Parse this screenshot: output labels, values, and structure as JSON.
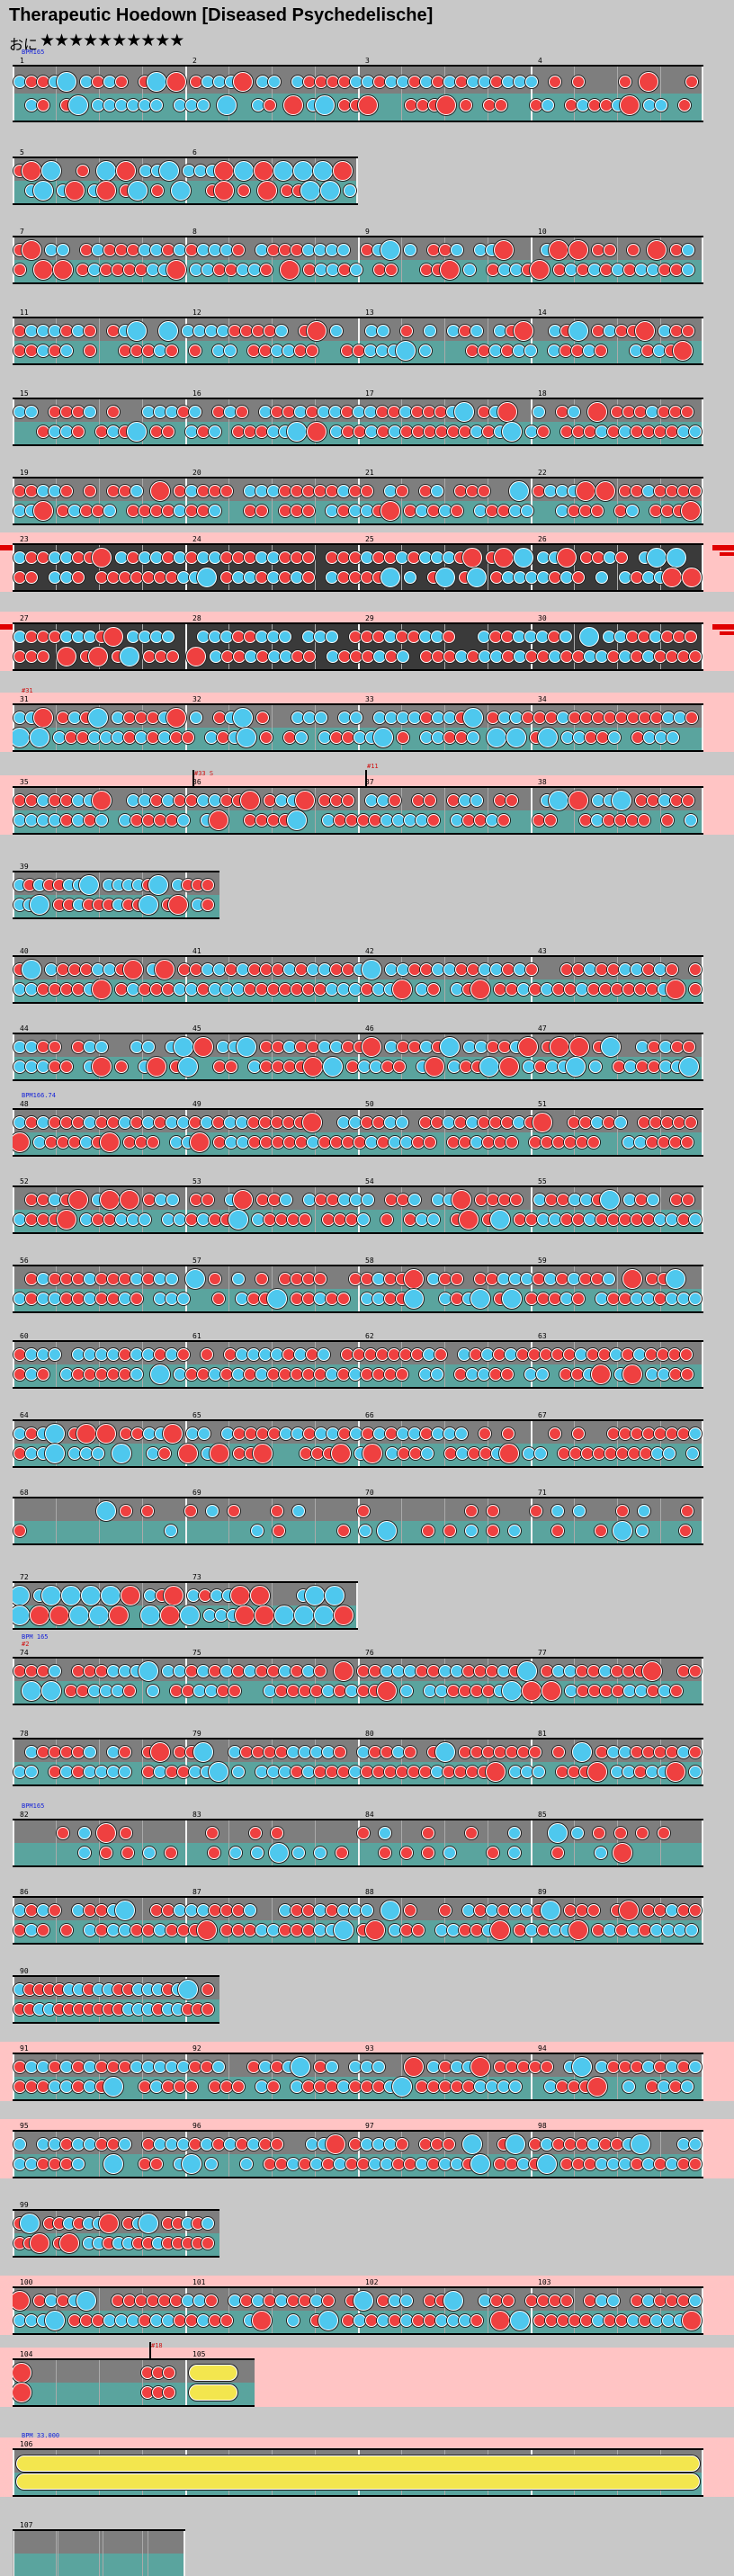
{
  "song": {
    "title": "Therapeutic Hoedown [Diseased Psychedelische]",
    "difficulty_label": "おに",
    "stars_text": "★★★★★★★★★★",
    "star_count": 10,
    "colors": {
      "don": "#ef4040",
      "ka": "#4ec8ee",
      "roll": "#f3e64e",
      "gogo": "#ffc4c4",
      "lane_upper": "#7e7e7e",
      "lane_lower": "#5aa49e"
    }
  },
  "rows": [
    {
      "measures": [
        1,
        2,
        3,
        4
      ],
      "beats": 4,
      "seed": 3,
      "ann": [
        {
          "t": "BPM165",
          "c": "blue"
        }
      ],
      "tall": true
    },
    {
      "measures": [
        5,
        6
      ],
      "beats": 4,
      "seed": 5,
      "width": 2,
      "big": true
    },
    {
      "measures": [
        7,
        8,
        9,
        10
      ],
      "beats": 4,
      "seed": 7
    },
    {
      "measures": [
        11,
        12,
        13,
        14
      ],
      "beats": 4,
      "seed": 11
    },
    {
      "measures": [
        15,
        16,
        17,
        18
      ],
      "beats": 4,
      "seed": 13
    },
    {
      "measures": [
        19,
        20,
        21,
        22
      ],
      "beats": 4,
      "seed": 17
    },
    {
      "measures": [
        23,
        24,
        25,
        26
      ],
      "beats": 4,
      "seed": 19,
      "dark": true,
      "gogo": true,
      "flag": true
    },
    {
      "measures": [
        27,
        28,
        29,
        30
      ],
      "beats": 4,
      "seed": 23,
      "dark": true,
      "gogo": true,
      "flag": true
    },
    {
      "measures": [
        31,
        32,
        33,
        34
      ],
      "beats": 4,
      "seed": 29,
      "gogo": true,
      "ann": [
        {
          "t": "#31",
          "c": "red"
        }
      ]
    },
    {
      "measures": [
        35,
        36,
        37,
        38
      ],
      "beats": 4,
      "seed": 31,
      "gogo": true,
      "ann": [
        {
          "t": "#33 S",
          "c": "red",
          "m": 1
        },
        {
          "t": "#11",
          "c": "red",
          "m": 2
        }
      ]
    },
    {
      "measures": [
        39
      ],
      "beats": 4,
      "seed": 37,
      "width": 1.2,
      "dense": true
    },
    {
      "measures": [
        40,
        41,
        42,
        43
      ],
      "beats": 4,
      "seed": 41
    },
    {
      "measures": [
        44,
        45,
        46,
        47
      ],
      "beats": 4,
      "seed": 43
    },
    {
      "measures": [
        48,
        49,
        50,
        51
      ],
      "beats": 4,
      "seed": 47,
      "ann": [
        {
          "t": "BPM166.74",
          "c": "blue"
        }
      ]
    },
    {
      "measures": [
        52,
        53,
        54,
        55
      ],
      "beats": 4,
      "seed": 53
    },
    {
      "measures": [
        56,
        57,
        58,
        59
      ],
      "beats": 4,
      "seed": 59
    },
    {
      "measures": [
        60,
        61,
        62,
        63
      ],
      "beats": 4,
      "seed": 61
    },
    {
      "measures": [
        64,
        65,
        66,
        67
      ],
      "beats": 4,
      "seed": 67
    },
    {
      "measures": [
        68,
        69,
        70,
        71
      ],
      "beats": 4,
      "seed": 71,
      "sparse": true
    },
    {
      "measures": [
        72,
        73
      ],
      "beats": 4,
      "seed": 73,
      "width": 2,
      "big": true
    },
    {
      "measures": [
        74,
        75,
        76,
        77
      ],
      "beats": 4,
      "seed": 79,
      "ann": [
        {
          "t": "#2",
          "c": "red"
        },
        {
          "t": "BPM 165",
          "c": "blue"
        }
      ]
    },
    {
      "measures": [
        78,
        79,
        80,
        81
      ],
      "beats": 4,
      "seed": 83
    },
    {
      "measures": [
        82,
        83,
        84,
        85
      ],
      "beats": 4,
      "seed": 89,
      "sparse": true,
      "ann": [
        {
          "t": "BPM165",
          "c": "blue"
        }
      ]
    },
    {
      "measures": [
        86,
        87,
        88,
        89
      ],
      "beats": 4,
      "seed": 97
    },
    {
      "measures": [
        90
      ],
      "beats": 4,
      "seed": 101,
      "width": 1.2,
      "dense": true
    },
    {
      "measures": [
        91,
        92,
        93,
        94
      ],
      "beats": 4,
      "seed": 103,
      "gogo": true
    },
    {
      "measures": [
        95,
        96,
        97,
        98
      ],
      "beats": 4,
      "seed": 107,
      "gogo": true
    },
    {
      "measures": [
        99
      ],
      "beats": 4,
      "seed": 109,
      "width": 1.2,
      "dense": true
    },
    {
      "measures": [
        100,
        101,
        102,
        103
      ],
      "beats": 4,
      "seed": 113,
      "gogo": true
    },
    {
      "measures": [
        104,
        105
      ],
      "beats": 4,
      "seed": 127,
      "width": 1.4,
      "gogo": true,
      "rollrow": true,
      "ann": [
        {
          "t": "#18",
          "c": "red",
          "m": 0.75
        }
      ]
    },
    {
      "measures": [
        106
      ],
      "beats": 4,
      "seed": 131,
      "width": 4,
      "gogo": true,
      "bigroll": true,
      "ann": [
        {
          "t": "BPM 33.000",
          "c": "blue"
        }
      ]
    },
    {
      "measures": [
        107
      ],
      "beats": 4,
      "seed": 137,
      "empty": true
    }
  ]
}
